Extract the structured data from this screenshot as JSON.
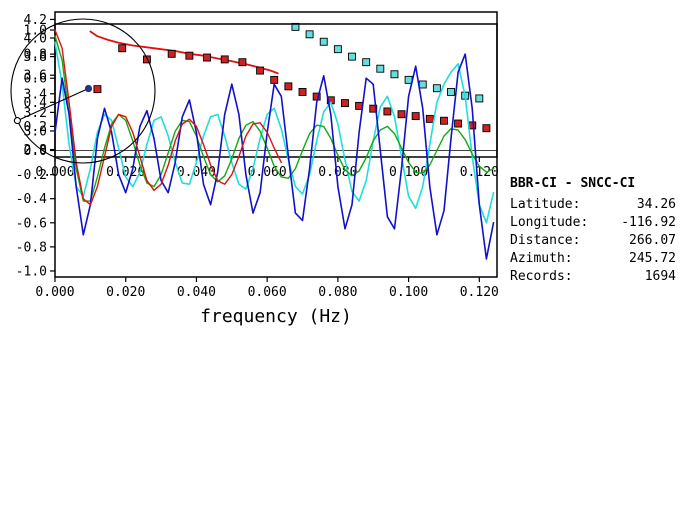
{
  "station_info": {
    "pair": "BBR-CI - SNCC-CI",
    "rows": [
      {
        "label": "Latitude:",
        "value": "34.26"
      },
      {
        "label": "Longitude:",
        "value": "-116.92"
      },
      {
        "label": "Distance:",
        "value": "266.07"
      },
      {
        "label": "Azimuth:",
        "value": "245.72"
      },
      {
        "label": "Records:",
        "value": "1694"
      }
    ]
  },
  "map": {
    "azimuth_deg": 245.72,
    "dot_color": "#223388",
    "circle_color": "#000000"
  },
  "chart_data": [
    {
      "id": "dispersion",
      "type": "scatter",
      "title": "",
      "xlabel": "",
      "ylabel": "",
      "xlim": [
        0,
        0.125
      ],
      "ylim": [
        2.72,
        4.28
      ],
      "grid": false,
      "xtick_values": [
        0,
        0.02,
        0.04,
        0.06,
        0.08,
        0.1,
        0.12
      ],
      "xtick_labels": [
        "0.000",
        "0.020",
        "0.040",
        "0.060",
        "0.080",
        "0.100",
        "0.120"
      ],
      "ytick_values": [
        2.8,
        3.0,
        3.2,
        3.4,
        3.6,
        3.8,
        4.0,
        4.2
      ],
      "ytick_labels": [
        "2.8",
        "3.0",
        "3.2",
        "3.4",
        "3.6",
        "3.8",
        "4.0",
        "4.2"
      ],
      "series": [
        {
          "name": "smooth-curve-red",
          "type": "line",
          "color": "#e01010",
          "width": 1.8,
          "x": [
            0.01,
            0.012,
            0.015,
            0.018,
            0.022,
            0.026,
            0.03,
            0.034,
            0.038,
            0.042,
            0.046,
            0.05,
            0.054,
            0.058,
            0.061,
            0.063
          ],
          "y": [
            4.07,
            4.02,
            3.98,
            3.95,
            3.92,
            3.9,
            3.88,
            3.86,
            3.83,
            3.81,
            3.78,
            3.75,
            3.72,
            3.68,
            3.65,
            3.62
          ]
        },
        {
          "name": "squares-red",
          "type": "squares",
          "color": "#cc2222",
          "edge": "#000000",
          "size": 7,
          "x": [
            0.012,
            0.019,
            0.026,
            0.033,
            0.038,
            0.043,
            0.048,
            0.053,
            0.058,
            0.062,
            0.066,
            0.07,
            0.074,
            0.078,
            0.082,
            0.086,
            0.09,
            0.094,
            0.098,
            0.102,
            0.106,
            0.11,
            0.114,
            0.118,
            0.122
          ],
          "y": [
            3.45,
            3.89,
            3.77,
            3.83,
            3.81,
            3.79,
            3.77,
            3.74,
            3.65,
            3.55,
            3.48,
            3.42,
            3.37,
            3.33,
            3.3,
            3.27,
            3.24,
            3.21,
            3.18,
            3.16,
            3.13,
            3.11,
            3.08,
            3.06,
            3.03
          ]
        },
        {
          "name": "squares-cyan",
          "type": "squares",
          "color": "#66dddd",
          "edge": "#000000",
          "size": 7,
          "x": [
            0.068,
            0.072,
            0.076,
            0.08,
            0.084,
            0.088,
            0.092,
            0.096,
            0.1,
            0.104,
            0.108,
            0.112,
            0.116,
            0.12
          ],
          "y": [
            4.12,
            4.04,
            3.96,
            3.88,
            3.8,
            3.74,
            3.67,
            3.61,
            3.55,
            3.5,
            3.46,
            3.42,
            3.38,
            3.35
          ]
        }
      ]
    },
    {
      "id": "spectra",
      "type": "line",
      "title": "",
      "xlabel": "frequency (Hz)",
      "ylabel": "",
      "xlim": [
        0,
        0.125
      ],
      "ylim": [
        -1.05,
        1.05
      ],
      "grid": false,
      "zero_line": true,
      "xtick_values": [
        0,
        0.02,
        0.04,
        0.06,
        0.08,
        0.1,
        0.12
      ],
      "xtick_labels": [
        "0.000",
        "0.020",
        "0.040",
        "0.060",
        "0.080",
        "0.100",
        "0.120"
      ],
      "ytick_values": [
        -1.0,
        -0.8,
        -0.6,
        -0.4,
        -0.2,
        0.0,
        0.2,
        0.4,
        0.6,
        0.8,
        1.0
      ],
      "ytick_labels": [
        "-1.0",
        "-0.8",
        "-0.6",
        "-0.4",
        "-0.2",
        "0.0",
        "0.2",
        "0.4",
        "0.6",
        "0.8",
        "1.0"
      ],
      "x_start": 0,
      "x_step": 0.002,
      "series": [
        {
          "name": "waveform-cyan",
          "color": "#22dddd",
          "width": 1.6,
          "y": [
            0.9,
            0.55,
            0.05,
            -0.3,
            -0.38,
            -0.15,
            0.15,
            0.3,
            0.25,
            0.02,
            -0.22,
            -0.3,
            -0.18,
            0.05,
            0.25,
            0.28,
            0.12,
            -0.1,
            -0.27,
            -0.28,
            -0.1,
            0.12,
            0.28,
            0.3,
            0.12,
            -0.1,
            -0.28,
            -0.32,
            -0.15,
            0.1,
            0.3,
            0.35,
            0.18,
            -0.08,
            -0.3,
            -0.36,
            -0.2,
            0.08,
            0.32,
            0.4,
            0.22,
            -0.08,
            -0.34,
            -0.42,
            -0.25,
            0.08,
            0.36,
            0.45,
            0.28,
            -0.05,
            -0.38,
            -0.48,
            -0.3,
            0.05,
            0.4,
            0.55,
            0.65,
            0.72,
            0.45,
            -0.05,
            -0.45,
            -0.6,
            -0.35
          ]
        },
        {
          "name": "waveform-green",
          "color": "#11aa11",
          "width": 1.4,
          "y": [
            0.95,
            0.75,
            0.3,
            -0.15,
            -0.42,
            -0.42,
            -0.22,
            0.02,
            0.22,
            0.3,
            0.25,
            0.08,
            -0.12,
            -0.27,
            -0.3,
            -0.2,
            -0.02,
            0.16,
            0.25,
            0.24,
            0.12,
            -0.05,
            -0.2,
            -0.26,
            -0.21,
            -0.07,
            0.1,
            0.21,
            0.24,
            0.16,
            0.02,
            -0.13,
            -0.22,
            -0.23,
            -0.15,
            0.0,
            0.14,
            0.21,
            0.2,
            0.1,
            -0.04,
            -0.16,
            -0.21,
            -0.17,
            -0.06,
            0.08,
            0.17,
            0.2,
            0.14,
            0.02,
            -0.1,
            -0.18,
            -0.19,
            -0.12,
            0.0,
            0.12,
            0.18,
            0.17,
            0.09,
            -0.03,
            -0.13,
            -0.18,
            -0.15
          ]
        },
        {
          "name": "waveform-blue",
          "color": "#1111cc",
          "width": 1.6,
          "y": [
            0.15,
            0.6,
            0.3,
            -0.3,
            -0.7,
            -0.45,
            0.1,
            0.35,
            0.15,
            -0.2,
            -0.35,
            -0.15,
            0.2,
            0.33,
            0.1,
            -0.25,
            -0.35,
            -0.1,
            0.28,
            0.42,
            0.15,
            -0.28,
            -0.45,
            -0.18,
            0.3,
            0.55,
            0.3,
            -0.2,
            -0.52,
            -0.35,
            0.15,
            0.55,
            0.45,
            -0.05,
            -0.52,
            -0.58,
            -0.15,
            0.4,
            0.62,
            0.3,
            -0.3,
            -0.65,
            -0.45,
            0.15,
            0.6,
            0.55,
            0.0,
            -0.55,
            -0.65,
            -0.15,
            0.45,
            0.7,
            0.35,
            -0.3,
            -0.7,
            -0.5,
            0.1,
            0.65,
            0.8,
            0.35,
            -0.45,
            -0.9,
            -0.6
          ]
        },
        {
          "name": "waveform-red",
          "color": "#dd1111",
          "width": 1.4,
          "y": [
            1.0,
            0.85,
            0.4,
            -0.1,
            -0.4,
            -0.45,
            -0.3,
            -0.05,
            0.2,
            0.3,
            0.28,
            0.15,
            -0.05,
            -0.25,
            -0.33,
            -0.28,
            -0.12,
            0.08,
            0.22,
            0.26,
            0.2,
            0.05,
            -0.12,
            -0.25,
            -0.28,
            -0.2,
            -0.05,
            0.12,
            0.22,
            0.23,
            0.15,
            0.02,
            -0.1
          ]
        }
      ]
    }
  ]
}
